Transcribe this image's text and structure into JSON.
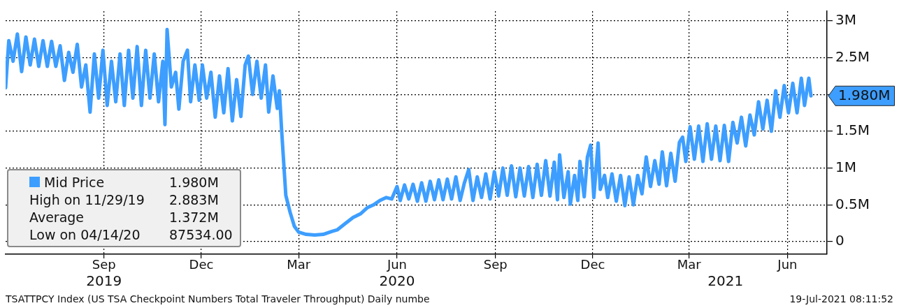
{
  "chart_data": {
    "type": "line",
    "grid": true,
    "legend": "bottom left",
    "marker": "none",
    "line_style": "solid",
    "xlim": [
      "2019-06-01",
      "2021-07-08"
    ],
    "xticks": [
      {
        "value": "2019-09-01",
        "label": "Sep"
      },
      {
        "value": "2019-12-01",
        "label": "Dec"
      },
      {
        "value": "2020-03-01",
        "label": "Mar"
      },
      {
        "value": "2020-06-01",
        "label": "Jun"
      },
      {
        "value": "2020-09-01",
        "label": "Sep"
      },
      {
        "value": "2020-12-01",
        "label": "Dec"
      },
      {
        "value": "2021-03-01",
        "label": "Mar"
      },
      {
        "value": "2021-06-01",
        "label": "Jun"
      }
    ],
    "x2lim": [
      "2019-06-01",
      "2021-07-08"
    ],
    "x2ticks": [
      {
        "value": "2019-09-01",
        "label": "2019"
      },
      {
        "value": "2020-06-01",
        "label": "2020"
      },
      {
        "value": "2021-04-04",
        "label": "2021"
      }
    ],
    "ylim": [
      -0.17,
      3.13
    ],
    "yticks": [
      0,
      {
        "value": 0.5,
        "label": "0.5M"
      },
      {
        "value": 1,
        "label": "1M"
      },
      {
        "value": 1.5,
        "label": "1.5M"
      },
      {
        "value": 2,
        "label": null
      },
      {
        "value": 2.5,
        "label": "2.5M"
      },
      {
        "value": 3,
        "label": "3M"
      }
    ],
    "x": [
      "2019-06-01",
      "2019-06-04",
      "2019-06-08",
      "2019-06-12",
      "2019-06-16",
      "2019-06-20",
      "2019-06-24",
      "2019-06-28",
      "2019-07-02",
      "2019-07-06",
      "2019-07-10",
      "2019-07-14",
      "2019-07-18",
      "2019-07-22",
      "2019-07-26",
      "2019-07-30",
      "2019-08-03",
      "2019-08-07",
      "2019-08-11",
      "2019-08-15",
      "2019-08-19",
      "2019-08-23",
      "2019-08-27",
      "2019-08-31",
      "2019-09-04",
      "2019-09-08",
      "2019-09-12",
      "2019-09-16",
      "2019-09-20",
      "2019-09-24",
      "2019-09-28",
      "2019-10-02",
      "2019-10-06",
      "2019-10-10",
      "2019-10-14",
      "2019-10-18",
      "2019-10-22",
      "2019-10-26",
      "2019-10-28",
      "2019-10-30",
      "2019-11-03",
      "2019-11-07",
      "2019-11-10",
      "2019-11-14",
      "2019-11-18",
      "2019-11-21",
      "2019-11-25",
      "2019-11-29",
      "2019-12-02",
      "2019-12-06",
      "2019-12-10",
      "2019-12-14",
      "2019-12-18",
      "2019-12-22",
      "2019-12-26",
      "2019-12-30",
      "2020-01-03",
      "2020-01-07",
      "2020-01-11",
      "2020-01-14",
      "2020-01-18",
      "2020-01-22",
      "2020-01-26",
      "2020-01-30",
      "2020-02-02",
      "2020-02-06",
      "2020-02-10",
      "2020-02-12",
      "2020-02-14",
      "2020-02-18",
      "2020-02-22",
      "2020-02-26",
      "2020-03-01",
      "2020-03-08",
      "2020-03-16",
      "2020-03-24",
      "2020-04-01",
      "2020-04-06",
      "2020-04-13",
      "2020-04-21",
      "2020-04-28",
      "2020-05-04",
      "2020-05-10",
      "2020-05-16",
      "2020-05-22",
      "2020-05-27",
      "2020-06-01",
      "2020-06-04",
      "2020-06-08",
      "2020-06-12",
      "2020-06-16",
      "2020-06-20",
      "2020-06-24",
      "2020-06-28",
      "2020-07-02",
      "2020-07-06",
      "2020-07-10",
      "2020-07-14",
      "2020-07-18",
      "2020-07-22",
      "2020-07-26",
      "2020-07-30",
      "2020-08-03",
      "2020-08-07",
      "2020-08-11",
      "2020-08-15",
      "2020-08-19",
      "2020-08-23",
      "2020-08-27",
      "2020-08-31",
      "2020-09-04",
      "2020-09-08",
      "2020-09-12",
      "2020-09-16",
      "2020-09-20",
      "2020-09-24",
      "2020-09-28",
      "2020-10-02",
      "2020-10-06",
      "2020-10-10",
      "2020-10-14",
      "2020-10-18",
      "2020-10-22",
      "2020-10-26",
      "2020-10-29",
      "2020-10-31",
      "2020-11-04",
      "2020-11-08",
      "2020-11-10",
      "2020-11-14",
      "2020-11-17",
      "2020-11-19",
      "2020-11-23",
      "2020-11-26",
      "2020-11-29",
      "2020-12-02",
      "2020-12-06",
      "2020-12-08",
      "2020-12-12",
      "2020-12-15",
      "2020-12-19",
      "2020-12-23",
      "2020-12-27",
      "2020-12-31",
      "2021-01-04",
      "2021-01-08",
      "2021-01-12",
      "2021-01-16",
      "2021-01-20",
      "2021-01-24",
      "2021-01-28",
      "2021-02-01",
      "2021-02-04",
      "2021-02-08",
      "2021-02-12",
      "2021-02-16",
      "2021-02-20",
      "2021-02-23",
      "2021-02-26",
      "2021-03-02",
      "2021-03-06",
      "2021-03-10",
      "2021-03-14",
      "2021-03-18",
      "2021-03-22",
      "2021-03-26",
      "2021-03-30",
      "2021-04-03",
      "2021-04-07",
      "2021-04-11",
      "2021-04-15",
      "2021-04-19",
      "2021-04-23",
      "2021-04-27",
      "2021-05-01",
      "2021-05-05",
      "2021-05-09",
      "2021-05-13",
      "2021-05-17",
      "2021-05-21",
      "2021-05-25",
      "2021-05-29",
      "2021-06-02",
      "2021-06-06",
      "2021-06-10",
      "2021-06-14",
      "2021-06-17",
      "2021-06-21",
      "2021-06-23"
    ],
    "series": [
      {
        "name": "Mid Price",
        "color": "#3d9eff",
        "values": [
          2.09,
          2.73,
          2.45,
          2.82,
          2.31,
          2.78,
          2.4,
          2.75,
          2.38,
          2.73,
          2.38,
          2.72,
          2.38,
          2.66,
          2.19,
          2.57,
          2.3,
          2.68,
          2.1,
          2.4,
          1.76,
          2.55,
          1.95,
          2.6,
          1.85,
          2.45,
          1.9,
          2.55,
          1.85,
          2.6,
          1.95,
          2.65,
          1.85,
          2.6,
          1.95,
          2.55,
          1.9,
          2.45,
          1.59,
          2.88,
          2.1,
          2.3,
          1.8,
          2.45,
          2.6,
          1.9,
          2.4,
          1.92,
          2.4,
          1.95,
          2.3,
          1.69,
          2.25,
          1.75,
          2.35,
          1.64,
          2.2,
          1.7,
          2.4,
          2.52,
          2.0,
          2.45,
          1.95,
          2.4,
          1.76,
          2.25,
          1.81,
          2.05,
          1.53,
          0.63,
          0.4,
          0.21,
          0.13,
          0.1,
          0.09,
          0.1,
          0.14,
          0.16,
          0.24,
          0.33,
          0.38,
          0.46,
          0.5,
          0.56,
          0.6,
          0.58,
          0.75,
          0.56,
          0.77,
          0.58,
          0.78,
          0.55,
          0.8,
          0.55,
          0.82,
          0.57,
          0.84,
          0.57,
          0.85,
          0.58,
          0.88,
          0.56,
          0.8,
          0.98,
          0.56,
          0.88,
          0.6,
          0.92,
          0.58,
          0.95,
          0.62,
          1.0,
          0.63,
          1.03,
          0.61,
          1.0,
          0.62,
          1.02,
          0.6,
          1.05,
          0.63,
          1.1,
          0.62,
          1.08,
          0.57,
          1.18,
          0.6,
          0.95,
          0.51,
          0.9,
          0.56,
          1.09,
          0.61,
          1.15,
          1.31,
          0.6,
          1.34,
          0.71,
          0.9,
          0.6,
          0.92,
          0.55,
          0.9,
          0.49,
          0.88,
          0.5,
          0.9,
          0.65,
          1.15,
          0.75,
          1.1,
          0.78,
          1.22,
          0.76,
          1.2,
          0.82,
          1.35,
          1.42,
          1.09,
          1.56,
          1.12,
          1.57,
          1.09,
          1.6,
          1.12,
          1.57,
          1.1,
          1.58,
          1.09,
          1.62,
          1.34,
          1.69,
          1.3,
          1.72,
          1.45,
          1.9,
          1.53,
          1.92,
          1.5,
          2.05,
          1.69,
          2.12,
          1.75,
          2.15,
          1.75,
          2.22,
          1.85,
          2.22,
          1.98
        ]
      }
    ],
    "annotations": [
      {
        "text": "1.980M",
        "x": "2021-06-23",
        "y": 1.98
      },
      "High on 11/29/19 2.883M",
      "Average 1.372M",
      "Low on 04/14/20 87534.00",
      "TSATTPCY Index (US TSA Checkpoint Numbers Total Traveler Throughput) Daily numbe",
      "19-Jul-2021 08:11:52"
    ]
  }
}
